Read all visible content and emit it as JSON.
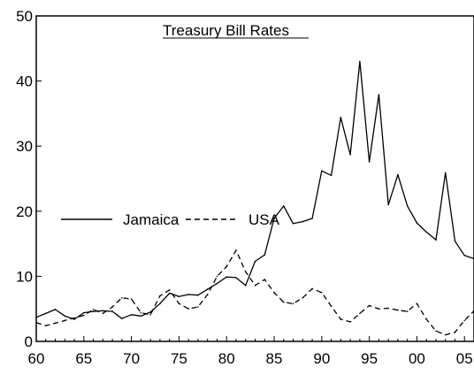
{
  "chart_data": {
    "type": "line",
    "title": "Treasury Bill Rates",
    "xlabel": "",
    "ylabel": "",
    "xlim": [
      1960,
      2006
    ],
    "ylim": [
      0,
      50
    ],
    "x_ticks": [
      {
        "value": 1960,
        "label": "60"
      },
      {
        "value": 1965,
        "label": "65"
      },
      {
        "value": 1970,
        "label": "70"
      },
      {
        "value": 1975,
        "label": "75"
      },
      {
        "value": 1980,
        "label": "80"
      },
      {
        "value": 1985,
        "label": "85"
      },
      {
        "value": 1990,
        "label": "90"
      },
      {
        "value": 1995,
        "label": "95"
      },
      {
        "value": 2000,
        "label": "00"
      },
      {
        "value": 2005,
        "label": "05"
      }
    ],
    "y_ticks": [
      {
        "value": 0,
        "label": "0"
      },
      {
        "value": 10,
        "label": "10"
      },
      {
        "value": 20,
        "label": "20"
      },
      {
        "value": 30,
        "label": "30"
      },
      {
        "value": 40,
        "label": "40"
      },
      {
        "value": 50,
        "label": "50"
      }
    ],
    "grid": false,
    "legend_placement": "middle-left",
    "x": [
      1960,
      1961,
      1962,
      1963,
      1964,
      1965,
      1966,
      1967,
      1968,
      1969,
      1970,
      1971,
      1972,
      1973,
      1974,
      1975,
      1976,
      1977,
      1978,
      1979,
      1980,
      1981,
      1982,
      1983,
      1984,
      1985,
      1986,
      1987,
      1988,
      1989,
      1990,
      1991,
      1992,
      1993,
      1994,
      1995,
      1996,
      1997,
      1998,
      1999,
      2000,
      2001,
      2002,
      2003,
      2004,
      2005,
      2006
    ],
    "series": [
      {
        "name": "Jamaica",
        "style": "solid",
        "color": "#000000",
        "values": [
          3.7,
          4.3,
          4.9,
          3.9,
          3.4,
          4.4,
          4.6,
          4.7,
          4.6,
          3.5,
          4.1,
          3.9,
          4.5,
          5.8,
          7.4,
          6.9,
          7.2,
          7.1,
          8.0,
          8.9,
          9.9,
          9.8,
          8.6,
          12.3,
          13.3,
          18.9,
          20.8,
          18.1,
          18.4,
          18.9,
          26.2,
          25.5,
          34.4,
          28.7,
          43.0,
          27.6,
          37.9,
          21.0,
          25.6,
          20.8,
          18.2,
          16.8,
          15.6,
          25.9,
          15.4,
          13.2,
          12.7
        ]
      },
      {
        "name": "USA",
        "style": "dashed",
        "color": "#000000",
        "values": [
          2.9,
          2.4,
          2.8,
          3.2,
          3.6,
          4.0,
          4.9,
          4.3,
          5.3,
          6.7,
          6.5,
          4.4,
          4.1,
          7.0,
          7.9,
          5.8,
          5.0,
          5.3,
          7.2,
          10.0,
          11.5,
          14.0,
          10.7,
          8.6,
          9.5,
          7.5,
          6.0,
          5.8,
          6.7,
          8.1,
          7.5,
          5.4,
          3.4,
          3.0,
          4.3,
          5.5,
          5.0,
          5.1,
          4.8,
          4.6,
          5.8,
          3.4,
          1.6,
          1.0,
          1.4,
          3.2,
          4.7
        ]
      }
    ]
  }
}
